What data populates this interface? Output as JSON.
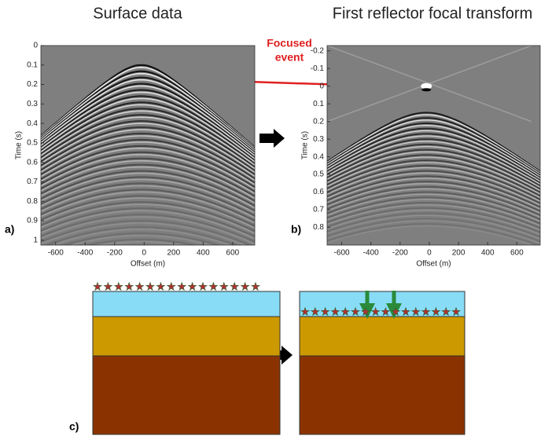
{
  "titles": {
    "left": "Surface data",
    "right": "First reflector focal transform"
  },
  "panels": [
    {
      "label": "a)",
      "xlabel": "Offset (m)",
      "ylabel": "Time (s)",
      "xlim": [
        -700,
        750
      ],
      "ylim": [
        0,
        1.025
      ],
      "xticks": [
        -600,
        -400,
        -200,
        0,
        200,
        400,
        600
      ],
      "yticks": [
        0,
        0.1,
        0.2,
        0.3,
        0.4,
        0.5,
        0.6,
        0.7,
        0.8,
        0.9,
        1
      ]
    },
    {
      "label": "b)",
      "xlabel": "Offset (m)",
      "ylabel": "Time (s)",
      "xlim": [
        -700,
        760
      ],
      "ylim": [
        -0.23,
        0.9
      ],
      "xticks": [
        -600,
        -400,
        -200,
        0,
        200,
        400,
        600
      ],
      "yticks": [
        -0.2,
        -0.1,
        0,
        0.1,
        0.2,
        0.3,
        0.4,
        0.5,
        0.6,
        0.7,
        0.8
      ]
    }
  ],
  "annotation": {
    "lines": [
      "Focused",
      "event"
    ]
  },
  "diagram": {
    "label": "c)"
  }
}
